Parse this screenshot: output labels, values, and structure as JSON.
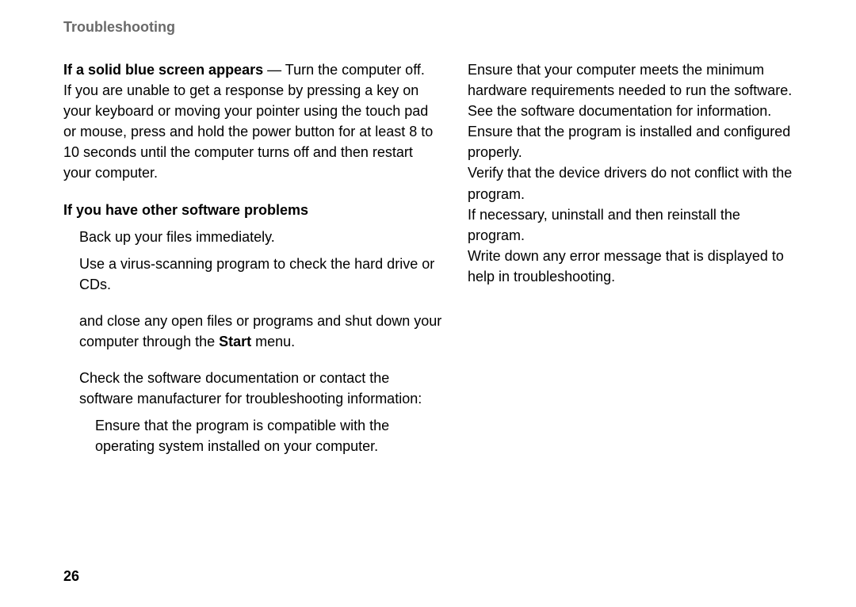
{
  "header": "Troubleshooting",
  "pageNumber": "26",
  "left": {
    "h1": "If a solid blue screen appears",
    "p1a": " — Turn the computer off.",
    "p1b": "If you are unable to get a response by pressing a key on your keyboard or moving your pointer using the touch pad or mouse, press and hold the power button for at least 8 to 10 seconds until the computer turns off and then restart your computer.",
    "h2": "If you have other software problems",
    "b1": "Back up your files immediately.",
    "b2": "Use a virus-scanning program to check the hard drive or CDs.",
    "b3a": "and close any open files or programs and shut down your computer through the ",
    "b3b": "Start",
    "b3c": " menu.",
    "b4": "Check the software documentation or contact the software manufacturer for troubleshooting information:",
    "s1": "Ensure that the program is compatible with the operating system installed on your computer."
  },
  "right": {
    "r1": "Ensure that your computer meets the minimum hardware requirements needed to run the software. See the software documentation for information.",
    "r2": "Ensure that the program is installed and configured properly.",
    "r3": "Verify that the device drivers do not conflict with the program.",
    "r4": "If necessary, uninstall and then reinstall the program.",
    "r5": "Write down any error message that is displayed to help in troubleshooting."
  }
}
